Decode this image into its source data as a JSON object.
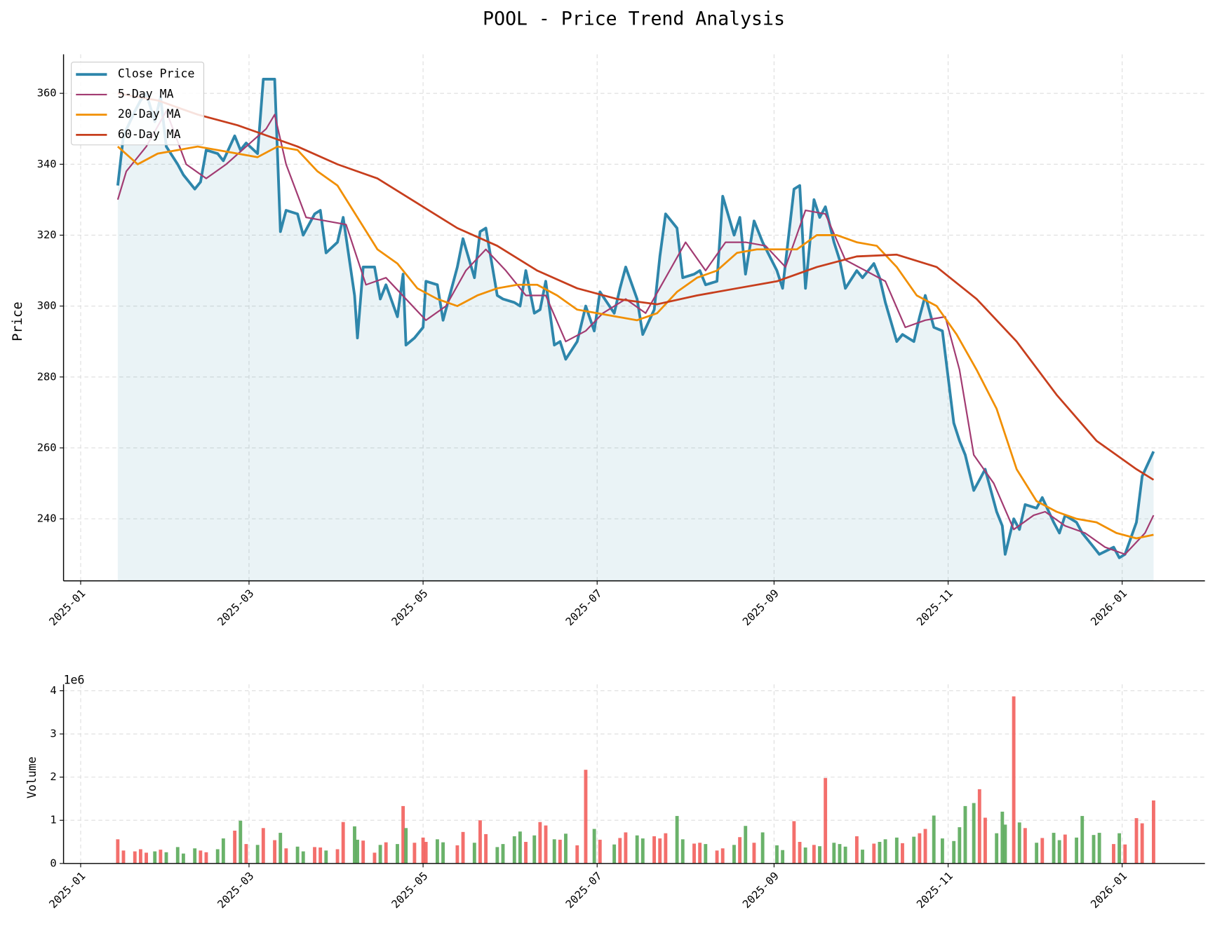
{
  "chart_data": [
    {
      "type": "line",
      "title": "POOL - Price Trend Analysis",
      "ylabel": "Price",
      "legend": "upper left",
      "grid": true,
      "xlim": [
        "2024-12-26",
        "2026-01-30"
      ],
      "xticks": [
        "2025-01",
        "2025-03",
        "2025-05",
        "2025-07",
        "2025-09",
        "2025-11",
        "2026-01"
      ],
      "ylim": [
        222.5,
        371
      ],
      "yticks": [
        240,
        260,
        280,
        300,
        320,
        340,
        360
      ],
      "x": [
        "2025-01-14",
        "2025-01-16",
        "2025-01-20",
        "2025-01-22",
        "2025-01-24",
        "2025-01-27",
        "2025-01-29",
        "2025-01-31",
        "2025-02-04",
        "2025-02-06",
        "2025-02-10",
        "2025-02-12",
        "2025-02-14",
        "2025-02-18",
        "2025-02-20",
        "2025-02-24",
        "2025-02-26",
        "2025-02-28",
        "2025-03-04",
        "2025-03-06",
        "2025-03-10",
        "2025-03-12",
        "2025-03-14",
        "2025-03-18",
        "2025-03-20",
        "2025-03-24",
        "2025-03-26",
        "2025-03-28",
        "2025-04-01",
        "2025-04-03",
        "2025-04-07",
        "2025-04-08",
        "2025-04-10",
        "2025-04-14",
        "2025-04-16",
        "2025-04-18",
        "2025-04-22",
        "2025-04-24",
        "2025-04-25",
        "2025-04-28",
        "2025-05-01",
        "2025-05-02",
        "2025-05-06",
        "2025-05-08",
        "2025-05-13",
        "2025-05-15",
        "2025-05-19",
        "2025-05-21",
        "2025-05-23",
        "2025-05-27",
        "2025-05-29",
        "2025-06-02",
        "2025-06-04",
        "2025-06-06",
        "2025-06-09",
        "2025-06-11",
        "2025-06-13",
        "2025-06-16",
        "2025-06-18",
        "2025-06-20",
        "2025-06-24",
        "2025-06-27",
        "2025-06-30",
        "2025-07-02",
        "2025-07-07",
        "2025-07-09",
        "2025-07-11",
        "2025-07-15",
        "2025-07-17",
        "2025-07-21",
        "2025-07-23",
        "2025-07-25",
        "2025-07-29",
        "2025-07-31",
        "2025-08-04",
        "2025-08-06",
        "2025-08-08",
        "2025-08-12",
        "2025-08-14",
        "2025-08-18",
        "2025-08-20",
        "2025-08-22",
        "2025-08-25",
        "2025-08-28",
        "2025-09-02",
        "2025-09-04",
        "2025-09-08",
        "2025-09-10",
        "2025-09-12",
        "2025-09-15",
        "2025-09-17",
        "2025-09-19",
        "2025-09-22",
        "2025-09-24",
        "2025-09-26",
        "2025-09-30",
        "2025-10-02",
        "2025-10-06",
        "2025-10-08",
        "2025-10-10",
        "2025-10-14",
        "2025-10-16",
        "2025-10-20",
        "2025-10-22",
        "2025-10-24",
        "2025-10-27",
        "2025-10-30",
        "2025-11-03",
        "2025-11-05",
        "2025-11-07",
        "2025-11-10",
        "2025-11-12",
        "2025-11-14",
        "2025-11-18",
        "2025-11-20",
        "2025-11-21",
        "2025-11-24",
        "2025-11-26",
        "2025-11-28",
        "2025-12-02",
        "2025-12-04",
        "2025-12-08",
        "2025-12-10",
        "2025-12-12",
        "2025-12-16",
        "2025-12-18",
        "2025-12-22",
        "2025-12-24",
        "2025-12-29",
        "2025-12-31",
        "2026-01-02",
        "2026-01-06",
        "2026-01-08",
        "2026-01-12"
      ],
      "series": [
        {
          "name": "Close Price",
          "color": "#2e86ab",
          "fill": true,
          "values": [
            334,
            348,
            355,
            358,
            360,
            352,
            359,
            345,
            340,
            337,
            333,
            335,
            344,
            343,
            341,
            348,
            344,
            346,
            343,
            364,
            364,
            321,
            327,
            326,
            320,
            326,
            327,
            315,
            318,
            325,
            303,
            291,
            311,
            311,
            302,
            306,
            297,
            309,
            289,
            291,
            294,
            307,
            306,
            296,
            311,
            319,
            308,
            321,
            322,
            303,
            302,
            301,
            300,
            310,
            298,
            299,
            307,
            289,
            290,
            285,
            290,
            300,
            293,
            304,
            298,
            305,
            311,
            302,
            292,
            299,
            314,
            326,
            322,
            308,
            309,
            310,
            306,
            307,
            331,
            320,
            325,
            309,
            324,
            318,
            310,
            305,
            333,
            334,
            305,
            330,
            325,
            328,
            318,
            313,
            305,
            310,
            308,
            312,
            308,
            301,
            290,
            292,
            290,
            297,
            303,
            294,
            293,
            267,
            262,
            258,
            248,
            251,
            254,
            242,
            238,
            230,
            240,
            237,
            244,
            243,
            246,
            239,
            236,
            241,
            239,
            236,
            232,
            230,
            232,
            229,
            230,
            239,
            252,
            259
          ]
        },
        {
          "name": "5-Day MA",
          "color": "#a23b72",
          "x": [
            "2025-01-14",
            "2025-01-17",
            "2025-01-24",
            "2025-01-31",
            "2025-02-07",
            "2025-02-14",
            "2025-02-21",
            "2025-02-28",
            "2025-03-07",
            "2025-03-10",
            "2025-03-14",
            "2025-03-21",
            "2025-03-28",
            "2025-04-04",
            "2025-04-11",
            "2025-04-18",
            "2025-04-25",
            "2025-05-02",
            "2025-05-09",
            "2025-05-16",
            "2025-05-23",
            "2025-05-30",
            "2025-06-06",
            "2025-06-13",
            "2025-06-20",
            "2025-06-27",
            "2025-07-03",
            "2025-07-11",
            "2025-07-18",
            "2025-07-25",
            "2025-08-01",
            "2025-08-08",
            "2025-08-15",
            "2025-08-22",
            "2025-08-29",
            "2025-09-05",
            "2025-09-12",
            "2025-09-19",
            "2025-09-26",
            "2025-10-03",
            "2025-10-10",
            "2025-10-17",
            "2025-10-24",
            "2025-10-31",
            "2025-11-05",
            "2025-11-10",
            "2025-11-17",
            "2025-11-24",
            "2025-12-01",
            "2025-12-05",
            "2025-12-12",
            "2025-12-19",
            "2025-12-26",
            "2026-01-02",
            "2026-01-09",
            "2026-01-12"
          ],
          "values": [
            330,
            338,
            345,
            355,
            340,
            336,
            340,
            345,
            350,
            354,
            340,
            325,
            324,
            323,
            306,
            308,
            302,
            296,
            300,
            310,
            316,
            310,
            303,
            303,
            290,
            293,
            298,
            302,
            298,
            308,
            318,
            310,
            318,
            318,
            317,
            311,
            327,
            326,
            313,
            310,
            307,
            294,
            296,
            297,
            282,
            258,
            250,
            237,
            241,
            242,
            238,
            236,
            232,
            230,
            236,
            241
          ]
        },
        {
          "name": "20-Day MA",
          "color": "#f18f01",
          "x": [
            "2025-01-14",
            "2025-01-21",
            "2025-01-28",
            "2025-02-11",
            "2025-02-25",
            "2025-03-04",
            "2025-03-11",
            "2025-03-18",
            "2025-03-25",
            "2025-04-01",
            "2025-04-08",
            "2025-04-15",
            "2025-04-22",
            "2025-04-29",
            "2025-05-06",
            "2025-05-13",
            "2025-05-20",
            "2025-05-27",
            "2025-06-03",
            "2025-06-10",
            "2025-06-17",
            "2025-06-24",
            "2025-07-01",
            "2025-07-08",
            "2025-07-15",
            "2025-07-22",
            "2025-07-29",
            "2025-08-05",
            "2025-08-12",
            "2025-08-19",
            "2025-08-26",
            "2025-09-02",
            "2025-09-09",
            "2025-09-16",
            "2025-09-23",
            "2025-09-30",
            "2025-10-07",
            "2025-10-14",
            "2025-10-21",
            "2025-10-28",
            "2025-11-04",
            "2025-11-11",
            "2025-11-18",
            "2025-11-25",
            "2025-12-02",
            "2025-12-09",
            "2025-12-16",
            "2025-12-23",
            "2025-12-30",
            "2026-01-06",
            "2026-01-12"
          ],
          "values": [
            345,
            340,
            343,
            345,
            343,
            342,
            345,
            344,
            338,
            334,
            325,
            316,
            312,
            305,
            302,
            300,
            303,
            305,
            306,
            306,
            303,
            299,
            298,
            297,
            296,
            298,
            304,
            308,
            310,
            315,
            316,
            316,
            316,
            320,
            320,
            318,
            317,
            311,
            303,
            300,
            292,
            282,
            271,
            254,
            245,
            242,
            240,
            239,
            236,
            234.5,
            235.5
          ]
        },
        {
          "name": "60-Day MA",
          "color": "#c73e1d",
          "x": [
            "2025-01-14",
            "2025-01-28",
            "2025-02-11",
            "2025-02-25",
            "2025-03-04",
            "2025-03-18",
            "2025-04-01",
            "2025-04-15",
            "2025-04-29",
            "2025-05-13",
            "2025-05-27",
            "2025-06-10",
            "2025-06-24",
            "2025-07-08",
            "2025-07-22",
            "2025-08-05",
            "2025-08-19",
            "2025-09-02",
            "2025-09-16",
            "2025-09-30",
            "2025-10-14",
            "2025-10-28",
            "2025-11-11",
            "2025-11-25",
            "2025-12-09",
            "2025-12-23",
            "2026-01-06",
            "2026-01-12"
          ],
          "values": [
            360,
            358,
            354,
            351,
            349,
            345,
            340,
            336,
            329,
            322,
            317,
            310,
            305,
            302,
            300.5,
            303,
            305,
            307,
            311,
            314,
            314.5,
            311,
            302,
            290,
            275,
            262,
            254,
            251
          ]
        }
      ]
    },
    {
      "type": "bar",
      "ylabel": "Volume",
      "offset_label": "1e6",
      "grid": true,
      "up_color": "#f25f5c",
      "down_color": "#5aaa5a",
      "xlim": [
        "2024-12-26",
        "2026-01-30"
      ],
      "xticks": [
        "2025-01",
        "2025-03",
        "2025-05",
        "2025-07",
        "2025-09",
        "2025-11",
        "2026-01"
      ],
      "ylim": [
        0,
        4150000
      ],
      "yticks": [
        0,
        {
          "value": 1000000,
          "label": "1"
        },
        {
          "value": 2000000,
          "label": "2"
        },
        {
          "value": 3000000,
          "label": "3"
        },
        {
          "value": 4000000,
          "label": "4"
        }
      ],
      "x": [
        "2025-01-14",
        "2025-01-16",
        "2025-01-20",
        "2025-01-22",
        "2025-01-24",
        "2025-01-27",
        "2025-01-29",
        "2025-01-31",
        "2025-02-04",
        "2025-02-06",
        "2025-02-10",
        "2025-02-12",
        "2025-02-14",
        "2025-02-18",
        "2025-02-20",
        "2025-02-24",
        "2025-02-26",
        "2025-02-28",
        "2025-03-04",
        "2025-03-06",
        "2025-03-10",
        "2025-03-12",
        "2025-03-14",
        "2025-03-18",
        "2025-03-20",
        "2025-03-24",
        "2025-03-26",
        "2025-03-28",
        "2025-04-01",
        "2025-04-03",
        "2025-04-07",
        "2025-04-08",
        "2025-04-10",
        "2025-04-14",
        "2025-04-16",
        "2025-04-18",
        "2025-04-22",
        "2025-04-24",
        "2025-04-25",
        "2025-04-28",
        "2025-05-01",
        "2025-05-02",
        "2025-05-06",
        "2025-05-08",
        "2025-05-13",
        "2025-05-15",
        "2025-05-19",
        "2025-05-21",
        "2025-05-23",
        "2025-05-27",
        "2025-05-29",
        "2025-06-02",
        "2025-06-04",
        "2025-06-06",
        "2025-06-09",
        "2025-06-11",
        "2025-06-13",
        "2025-06-16",
        "2025-06-18",
        "2025-06-20",
        "2025-06-24",
        "2025-06-27",
        "2025-06-30",
        "2025-07-02",
        "2025-07-07",
        "2025-07-09",
        "2025-07-11",
        "2025-07-15",
        "2025-07-17",
        "2025-07-21",
        "2025-07-23",
        "2025-07-25",
        "2025-07-29",
        "2025-07-31",
        "2025-08-04",
        "2025-08-06",
        "2025-08-08",
        "2025-08-12",
        "2025-08-14",
        "2025-08-18",
        "2025-08-20",
        "2025-08-22",
        "2025-08-25",
        "2025-08-28",
        "2025-09-02",
        "2025-09-04",
        "2025-09-08",
        "2025-09-10",
        "2025-09-12",
        "2025-09-15",
        "2025-09-17",
        "2025-09-19",
        "2025-09-22",
        "2025-09-24",
        "2025-09-26",
        "2025-09-30",
        "2025-10-02",
        "2025-10-06",
        "2025-10-08",
        "2025-10-10",
        "2025-10-14",
        "2025-10-16",
        "2025-10-20",
        "2025-10-22",
        "2025-10-24",
        "2025-10-27",
        "2025-10-30",
        "2025-11-03",
        "2025-11-05",
        "2025-11-07",
        "2025-11-10",
        "2025-11-12",
        "2025-11-14",
        "2025-11-18",
        "2025-11-20",
        "2025-11-21",
        "2025-11-24",
        "2025-11-26",
        "2025-11-28",
        "2025-12-02",
        "2025-12-04",
        "2025-12-08",
        "2025-12-10",
        "2025-12-12",
        "2025-12-16",
        "2025-12-18",
        "2025-12-22",
        "2025-12-24",
        "2025-12-29",
        "2025-12-31",
        "2026-01-02",
        "2026-01-06",
        "2026-01-08",
        "2026-01-12"
      ],
      "values": [
        560000,
        300000,
        280000,
        330000,
        250000,
        280000,
        320000,
        260000,
        380000,
        230000,
        350000,
        300000,
        260000,
        330000,
        580000,
        760000,
        990000,
        450000,
        430000,
        820000,
        540000,
        710000,
        350000,
        390000,
        280000,
        380000,
        370000,
        300000,
        330000,
        960000,
        860000,
        550000,
        530000,
        250000,
        430000,
        490000,
        450000,
        1330000,
        820000,
        480000,
        600000,
        500000,
        560000,
        490000,
        420000,
        730000,
        480000,
        1000000,
        680000,
        380000,
        450000,
        630000,
        740000,
        500000,
        650000,
        960000,
        880000,
        560000,
        550000,
        690000,
        420000,
        2170000,
        800000,
        550000,
        440000,
        590000,
        720000,
        650000,
        580000,
        630000,
        580000,
        700000,
        1100000,
        560000,
        460000,
        480000,
        450000,
        300000,
        350000,
        430000,
        610000,
        870000,
        480000,
        720000,
        420000,
        310000,
        980000,
        500000,
        370000,
        430000,
        400000,
        1980000,
        480000,
        450000,
        390000,
        630000,
        320000,
        460000,
        500000,
        560000,
        600000,
        470000,
        620000,
        700000,
        800000,
        1110000,
        580000,
        520000,
        840000,
        1330000,
        1400000,
        1720000,
        1060000,
        700000,
        1200000,
        900000,
        3870000,
        950000,
        820000,
        480000,
        590000,
        710000,
        540000,
        670000,
        600000,
        1100000,
        660000,
        710000,
        450000,
        700000,
        440000,
        1050000,
        930000,
        1460000
      ]
    }
  ]
}
